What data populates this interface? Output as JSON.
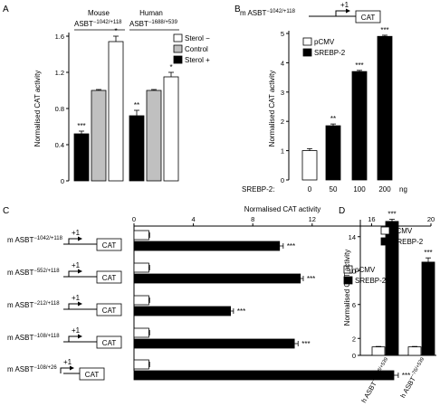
{
  "chart_data": [
    {
      "panel": "A",
      "type": "bar",
      "ylabel": "Normalised CAT activity",
      "ylim": [
        0,
        1.6
      ],
      "yticks": [
        "0",
        "0.4",
        "0.8",
        "1.2",
        "1.6"
      ],
      "groups": [
        {
          "title": "Mouse",
          "label": "ASBT",
          "sup": "−1042/+118"
        },
        {
          "title": "Human",
          "label": "ASBT",
          "sup": "−1688/+539"
        }
      ],
      "legend": [
        "Sterol −",
        "Control",
        "Sterol +"
      ],
      "colors": {
        "Sterol −": "#ffffff",
        "Control": "#c0c0c0",
        "Sterol +": "#000000"
      },
      "series": [
        {
          "name": "Sterol −",
          "values": [
            1.54,
            1.15
          ],
          "errors": [
            0.06,
            0.05
          ],
          "sig": [
            "*",
            "*"
          ]
        },
        {
          "name": "Control",
          "values": [
            1.0,
            1.0
          ],
          "errors": [
            0.01,
            0.01
          ],
          "sig": [
            "",
            ""
          ]
        },
        {
          "name": "Sterol +",
          "values": [
            0.52,
            0.72
          ],
          "errors": [
            0.03,
            0.06
          ],
          "sig": [
            "***",
            "**"
          ]
        }
      ]
    },
    {
      "panel": "B",
      "type": "bar",
      "ylabel": "Normalised CAT activity",
      "ylim": [
        0,
        5
      ],
      "yticks": [
        "0",
        "1",
        "2",
        "3",
        "4",
        "5"
      ],
      "construct": {
        "prefix": "m ASBT",
        "sup": "−1042/+118",
        "plus1": "+1",
        "reporter": "CAT"
      },
      "legend": [
        "pCMV",
        "SREBP-2"
      ],
      "xtitle": "SREBP-2:",
      "xunit": "ng",
      "categories": [
        "0",
        "50",
        "100",
        "200"
      ],
      "values": [
        1.0,
        1.85,
        3.7,
        4.9
      ],
      "errors": [
        0.07,
        0.06,
        0.04,
        0.04
      ],
      "fills": [
        "#ffffff",
        "#000000",
        "#000000",
        "#000000"
      ],
      "sig": [
        "",
        "**",
        "***",
        "***"
      ]
    },
    {
      "panel": "C",
      "type": "bar",
      "orientation": "horizontal",
      "xlabel": "Normalised CAT activity",
      "xlim": [
        0,
        20
      ],
      "xticks": [
        "0",
        "4",
        "8",
        "12",
        "16",
        "20"
      ],
      "legend": [
        "pCMV",
        "SREBP-2"
      ],
      "constructs": [
        {
          "prefix": "m ASBT",
          "sup": "−1042/+118",
          "plus1": "+1",
          "reporter": "CAT"
        },
        {
          "prefix": "m ASBT",
          "sup": "−552/+118",
          "plus1": "+1",
          "reporter": "CAT"
        },
        {
          "prefix": "m ASBT",
          "sup": "−212/+118",
          "plus1": "+1",
          "reporter": "CAT"
        },
        {
          "prefix": "m ASBT",
          "sup": "−108/+118",
          "plus1": "+1",
          "reporter": "CAT"
        },
        {
          "prefix": "m ASBT",
          "sup": "−108/+26",
          "plus1": "+1",
          "reporter": "CAT"
        }
      ],
      "series": [
        {
          "name": "pCMV",
          "values": [
            1,
            1,
            1,
            1,
            1
          ],
          "errors": [
            0.05,
            0.05,
            0.05,
            0.05,
            0.05
          ]
        },
        {
          "name": "SREBP-2",
          "values": [
            9.8,
            11.2,
            6.5,
            10.8,
            17.5
          ],
          "errors": [
            0.25,
            0.2,
            0.2,
            0.25,
            0.3
          ],
          "sig": [
            "***",
            "***",
            "***",
            "***",
            "***"
          ]
        }
      ]
    },
    {
      "panel": "D",
      "type": "bar",
      "ylabel": "Normalised CAT activity",
      "ylim": [
        0,
        16
      ],
      "yticks": [
        "0",
        "2",
        "6",
        "10",
        "14"
      ],
      "legend": [
        "pCMV",
        "SREBP-2"
      ],
      "categories": [
        {
          "prefix": "h ASBT",
          "sup": "−1688/+539"
        },
        {
          "prefix": "h ASBT",
          "sup": "−76/+539"
        }
      ],
      "series": [
        {
          "name": "pCMV",
          "values": [
            1.0,
            1.0
          ],
          "errors": [
            0.05,
            0.05
          ],
          "sig": [
            "",
            ""
          ]
        },
        {
          "name": "SREBP-2",
          "values": [
            15.8,
            11.0
          ],
          "errors": [
            0.25,
            0.5
          ],
          "sig": [
            "***",
            "***"
          ]
        }
      ]
    }
  ]
}
